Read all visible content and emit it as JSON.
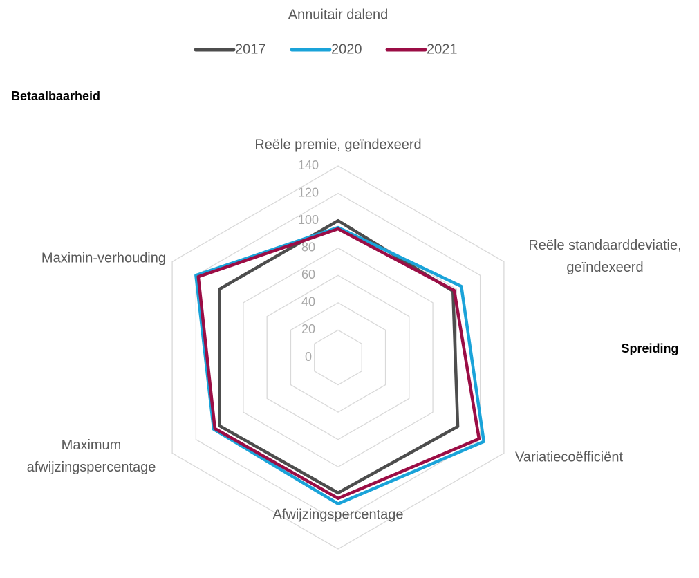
{
  "chart_data": {
    "type": "radar",
    "title": "Annuitair dalend",
    "annotations": [
      "Betaalbaarheid",
      "Spreiding"
    ],
    "categories": [
      "Reële premie, geïndexeerd",
      "Reële standaarddeviatie, geïndexeerd",
      "Variatiecoëfficiënt",
      "Afwijzingspercentage",
      "Maximum afwijzingspercentage",
      "Maximin-verhouding"
    ],
    "series": [
      {
        "name": "2017",
        "color": "#4d4d4d",
        "values": [
          100,
          97,
          101,
          99,
          100,
          100
        ]
      },
      {
        "name": "2020",
        "color": "#1aa3d9",
        "values": [
          95,
          104,
          123,
          107,
          105,
          120
        ]
      },
      {
        "name": "2021",
        "color": "#9b0d45",
        "values": [
          94,
          98,
          119,
          103,
          104,
          118
        ]
      }
    ],
    "rlim": [
      0,
      140
    ],
    "rticks": [
      0,
      20,
      40,
      60,
      80,
      100,
      120,
      140
    ],
    "grid": true,
    "legend": "top"
  }
}
